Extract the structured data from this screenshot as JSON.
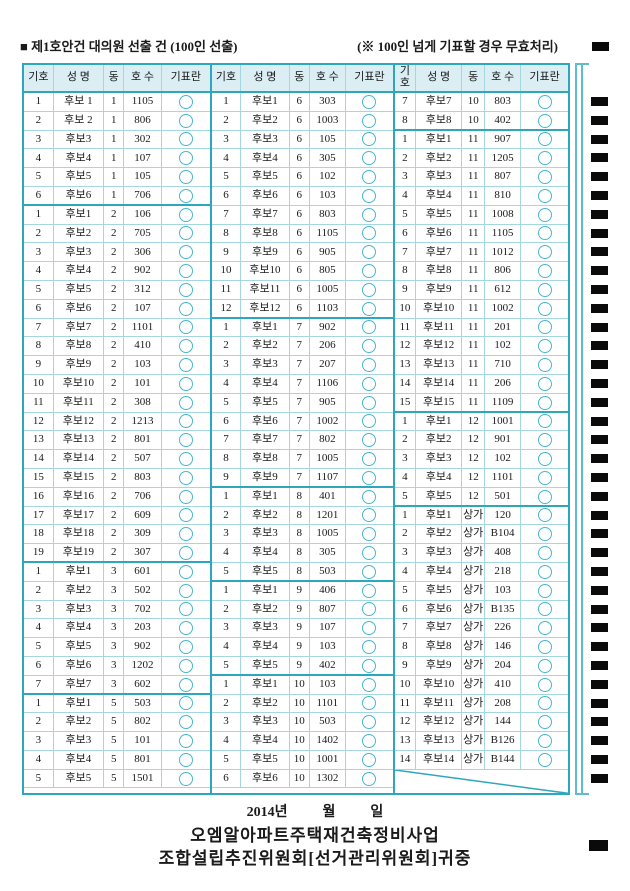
{
  "page": {
    "title_left": "■ 제1호안건 대의원 선출 건 (100인 선출)",
    "title_right": "(※ 100인 넘게 기표할 경우 무효처리)"
  },
  "table": {
    "headers": [
      "기호",
      "성 명",
      "동",
      "호 수",
      "기표란"
    ],
    "groups": [
      {
        "section_breaks": [
          6,
          25,
          32
        ],
        "crossed_tail": false,
        "rows": [
          [
            "1",
            "후보 1",
            "1",
            "1105"
          ],
          [
            "2",
            "후보 2",
            "1",
            "806"
          ],
          [
            "3",
            "후보3",
            "1",
            "302"
          ],
          [
            "4",
            "후보4",
            "1",
            "107"
          ],
          [
            "5",
            "후보5",
            "1",
            "105"
          ],
          [
            "6",
            "후보6",
            "1",
            "706"
          ],
          [
            "1",
            "후보1",
            "2",
            "106"
          ],
          [
            "2",
            "후보2",
            "2",
            "705"
          ],
          [
            "3",
            "후보3",
            "2",
            "306"
          ],
          [
            "4",
            "후보4",
            "2",
            "902"
          ],
          [
            "5",
            "후보5",
            "2",
            "312"
          ],
          [
            "6",
            "후보6",
            "2",
            "107"
          ],
          [
            "7",
            "후보7",
            "2",
            "1101"
          ],
          [
            "8",
            "후보8",
            "2",
            "410"
          ],
          [
            "9",
            "후보9",
            "2",
            "103"
          ],
          [
            "10",
            "후보10",
            "2",
            "101"
          ],
          [
            "11",
            "후보11",
            "2",
            "308"
          ],
          [
            "12",
            "후보12",
            "2",
            "1213"
          ],
          [
            "13",
            "후보13",
            "2",
            "801"
          ],
          [
            "14",
            "후보14",
            "2",
            "507"
          ],
          [
            "15",
            "후보15",
            "2",
            "803"
          ],
          [
            "16",
            "후보16",
            "2",
            "706"
          ],
          [
            "17",
            "후보17",
            "2",
            "609"
          ],
          [
            "18",
            "후보18",
            "2",
            "309"
          ],
          [
            "19",
            "후보19",
            "2",
            "307"
          ],
          [
            "1",
            "후보1",
            "3",
            "601"
          ],
          [
            "2",
            "후보2",
            "3",
            "502"
          ],
          [
            "3",
            "후보3",
            "3",
            "702"
          ],
          [
            "4",
            "후보4",
            "3",
            "203"
          ],
          [
            "5",
            "후보5",
            "3",
            "902"
          ],
          [
            "6",
            "후보6",
            "3",
            "1202"
          ],
          [
            "7",
            "후보7",
            "3",
            "602"
          ],
          [
            "1",
            "후보1",
            "5",
            "503"
          ],
          [
            "2",
            "후보2",
            "5",
            "802"
          ],
          [
            "3",
            "후보3",
            "5",
            "101"
          ],
          [
            "4",
            "후보4",
            "5",
            "801"
          ],
          [
            "5",
            "후보5",
            "5",
            "1501"
          ]
        ]
      },
      {
        "section_breaks": [
          12,
          21,
          26,
          31
        ],
        "crossed_tail": false,
        "rows": [
          [
            "1",
            "후보1",
            "6",
            "303"
          ],
          [
            "2",
            "후보2",
            "6",
            "1003"
          ],
          [
            "3",
            "후보3",
            "6",
            "105"
          ],
          [
            "4",
            "후보4",
            "6",
            "305"
          ],
          [
            "5",
            "후보5",
            "6",
            "102"
          ],
          [
            "6",
            "후보6",
            "6",
            "103"
          ],
          [
            "7",
            "후보7",
            "6",
            "803"
          ],
          [
            "8",
            "후보8",
            "6",
            "1105"
          ],
          [
            "9",
            "후보9",
            "6",
            "905"
          ],
          [
            "10",
            "후보10",
            "6",
            "805"
          ],
          [
            "11",
            "후보11",
            "6",
            "1005"
          ],
          [
            "12",
            "후보12",
            "6",
            "1103"
          ],
          [
            "1",
            "후보1",
            "7",
            "902"
          ],
          [
            "2",
            "후보2",
            "7",
            "206"
          ],
          [
            "3",
            "후보3",
            "7",
            "207"
          ],
          [
            "4",
            "후보4",
            "7",
            "1106"
          ],
          [
            "5",
            "후보5",
            "7",
            "905"
          ],
          [
            "6",
            "후보6",
            "7",
            "1002"
          ],
          [
            "7",
            "후보7",
            "7",
            "802"
          ],
          [
            "8",
            "후보8",
            "7",
            "1005"
          ],
          [
            "9",
            "후보9",
            "7",
            "1107"
          ],
          [
            "1",
            "후보1",
            "8",
            "401"
          ],
          [
            "2",
            "후보2",
            "8",
            "1201"
          ],
          [
            "3",
            "후보3",
            "8",
            "1005"
          ],
          [
            "4",
            "후보4",
            "8",
            "305"
          ],
          [
            "5",
            "후보5",
            "8",
            "503"
          ],
          [
            "1",
            "후보1",
            "9",
            "406"
          ],
          [
            "2",
            "후보2",
            "9",
            "807"
          ],
          [
            "3",
            "후보3",
            "9",
            "107"
          ],
          [
            "4",
            "후보4",
            "9",
            "103"
          ],
          [
            "5",
            "후보5",
            "9",
            "402"
          ],
          [
            "1",
            "후보1",
            "10",
            "103"
          ],
          [
            "2",
            "후보2",
            "10",
            "1101"
          ],
          [
            "3",
            "후보3",
            "10",
            "503"
          ],
          [
            "4",
            "후보4",
            "10",
            "1402"
          ],
          [
            "5",
            "후보5",
            "10",
            "1001"
          ],
          [
            "6",
            "후보6",
            "10",
            "1302"
          ]
        ]
      },
      {
        "section_breaks": [
          2,
          17,
          22
        ],
        "crossed_tail": true,
        "rows": [
          [
            "7",
            "후보7",
            "10",
            "803"
          ],
          [
            "8",
            "후보8",
            "10",
            "402"
          ],
          [
            "1",
            "후보1",
            "11",
            "907"
          ],
          [
            "2",
            "후보2",
            "11",
            "1205"
          ],
          [
            "3",
            "후보3",
            "11",
            "807"
          ],
          [
            "4",
            "후보4",
            "11",
            "810"
          ],
          [
            "5",
            "후보5",
            "11",
            "1008"
          ],
          [
            "6",
            "후보6",
            "11",
            "1105"
          ],
          [
            "7",
            "후보7",
            "11",
            "1012"
          ],
          [
            "8",
            "후보8",
            "11",
            "806"
          ],
          [
            "9",
            "후보9",
            "11",
            "612"
          ],
          [
            "10",
            "후보10",
            "11",
            "1002"
          ],
          [
            "11",
            "후보11",
            "11",
            "201"
          ],
          [
            "12",
            "후보12",
            "11",
            "102"
          ],
          [
            "13",
            "후보13",
            "11",
            "710"
          ],
          [
            "14",
            "후보14",
            "11",
            "206"
          ],
          [
            "15",
            "후보15",
            "11",
            "1109"
          ],
          [
            "1",
            "후보1",
            "12",
            "1001"
          ],
          [
            "2",
            "후보2",
            "12",
            "901"
          ],
          [
            "3",
            "후보3",
            "12",
            "102"
          ],
          [
            "4",
            "후보4",
            "12",
            "1101"
          ],
          [
            "5",
            "후보5",
            "12",
            "501"
          ],
          [
            "1",
            "후보1",
            "상가",
            "120"
          ],
          [
            "2",
            "후보2",
            "상가",
            "B104"
          ],
          [
            "3",
            "후보3",
            "상가",
            "408"
          ],
          [
            "4",
            "후보4",
            "상가",
            "218"
          ],
          [
            "5",
            "후보5",
            "상가",
            "103"
          ],
          [
            "6",
            "후보6",
            "상가",
            "B135"
          ],
          [
            "7",
            "후보7",
            "상가",
            "226"
          ],
          [
            "8",
            "후보8",
            "상가",
            "146"
          ],
          [
            "9",
            "후보9",
            "상가",
            "204"
          ],
          [
            "10",
            "후보10",
            "상가",
            "410"
          ],
          [
            "11",
            "후보11",
            "상가",
            "208"
          ],
          [
            "12",
            "후보12",
            "상가",
            "144"
          ],
          [
            "13",
            "후보13",
            "상가",
            "B126"
          ],
          [
            "14",
            "후보14",
            "상가",
            "B144"
          ]
        ]
      }
    ]
  },
  "omr": {
    "top_mark": true,
    "row_mark_count": 37,
    "bottom_mark": true
  },
  "footer": {
    "date_line": "2014년          월          일",
    "org_line": "오엠알아파트주택재건축정비사업",
    "dest_line": "조합설립추진위원회[선거관리위원회]귀중"
  },
  "colors": {
    "border_strong": "#2ea7bd",
    "border_light": "#a5d7e1",
    "header_bg": "#daeef3",
    "circle": "#49b7cb",
    "omr_mark": "#0a0a0a",
    "text": "#1a1a1a"
  }
}
